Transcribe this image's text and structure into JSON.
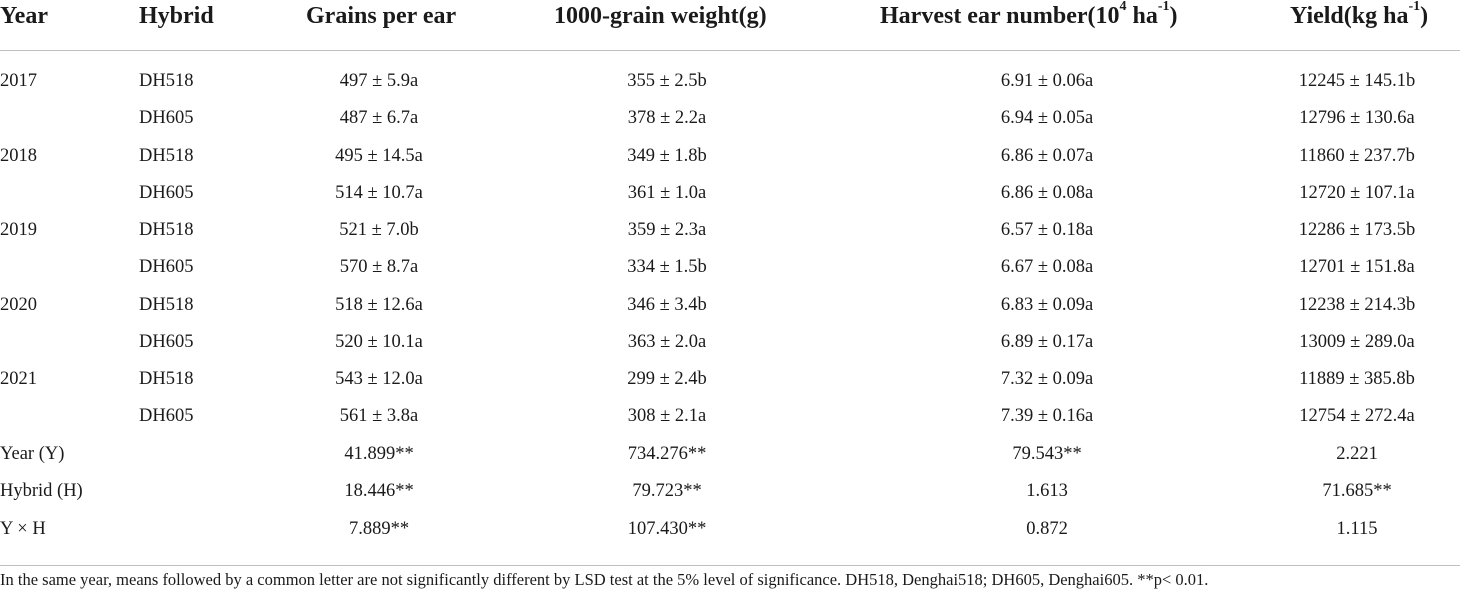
{
  "table": {
    "headers": {
      "year": "Year",
      "hybrid": "Hybrid",
      "grains": "Grains per ear",
      "kgw": "1000-grain weight(g)",
      "ear_prefix": "Harvest ear number(10",
      "ear_sup1": "4",
      "ear_mid": " ha",
      "ear_sup2": "-1",
      "ear_suffix": ")",
      "yield_prefix": "Yield(kg ha",
      "yield_sup": "-1",
      "yield_suffix": ")"
    },
    "rows": [
      {
        "year": "2017",
        "hybrid": "DH518",
        "grains": "497 ± 5.9a",
        "kgw": "355 ± 2.5b",
        "ear": "6.91 ± 0.06a",
        "yield": "12245 ± 145.1b"
      },
      {
        "year": "",
        "hybrid": "DH605",
        "grains": "487 ± 6.7a",
        "kgw": "378 ± 2.2a",
        "ear": "6.94 ± 0.05a",
        "yield": "12796 ± 130.6a"
      },
      {
        "year": "2018",
        "hybrid": "DH518",
        "grains": "495 ± 14.5a",
        "kgw": "349 ± 1.8b",
        "ear": "6.86 ± 0.07a",
        "yield": "11860 ± 237.7b"
      },
      {
        "year": "",
        "hybrid": "DH605",
        "grains": "514 ± 10.7a",
        "kgw": "361 ± 1.0a",
        "ear": "6.86 ± 0.08a",
        "yield": "12720 ± 107.1a"
      },
      {
        "year": "2019",
        "hybrid": "DH518",
        "grains": "521 ± 7.0b",
        "kgw": "359 ± 2.3a",
        "ear": "6.57 ± 0.18a",
        "yield": "12286 ± 173.5b"
      },
      {
        "year": "",
        "hybrid": "DH605",
        "grains": "570 ± 8.7a",
        "kgw": "334 ± 1.5b",
        "ear": "6.67 ± 0.08a",
        "yield": "12701 ± 151.8a"
      },
      {
        "year": "2020",
        "hybrid": "DH518",
        "grains": "518 ± 12.6a",
        "kgw": "346 ± 3.4b",
        "ear": "6.83 ± 0.09a",
        "yield": "12238 ± 214.3b"
      },
      {
        "year": "",
        "hybrid": "DH605",
        "grains": "520 ± 10.1a",
        "kgw": "363 ± 2.0a",
        "ear": "6.89 ± 0.17a",
        "yield": "13009 ± 289.0a"
      },
      {
        "year": "2021",
        "hybrid": "DH518",
        "grains": "543 ± 12.0a",
        "kgw": "299 ± 2.4b",
        "ear": "7.32 ± 0.09a",
        "yield": "11889 ± 385.8b"
      },
      {
        "year": "",
        "hybrid": "DH605",
        "grains": "561 ± 3.8a",
        "kgw": "308 ± 2.1a",
        "ear": "7.39 ± 0.16a",
        "yield": "12754 ± 272.4a"
      },
      {
        "year": "Year (Y)",
        "hybrid": "",
        "grains": "41.899**",
        "kgw": "734.276**",
        "ear": "79.543**",
        "yield": "2.221"
      },
      {
        "year": "Hybrid (H)",
        "hybrid": "",
        "grains": "18.446**",
        "kgw": "79.723**",
        "ear": "1.613",
        "yield": "71.685**"
      },
      {
        "year": "Y × H",
        "hybrid": "",
        "grains": "7.889**",
        "kgw": "107.430**",
        "ear": "0.872",
        "yield": "1.115"
      }
    ],
    "footnote": "In the same year, means followed by a common letter are not significantly different by LSD test at the 5% level of significance. DH518, Denghai518; DH605, Denghai605. **p< 0.01."
  }
}
